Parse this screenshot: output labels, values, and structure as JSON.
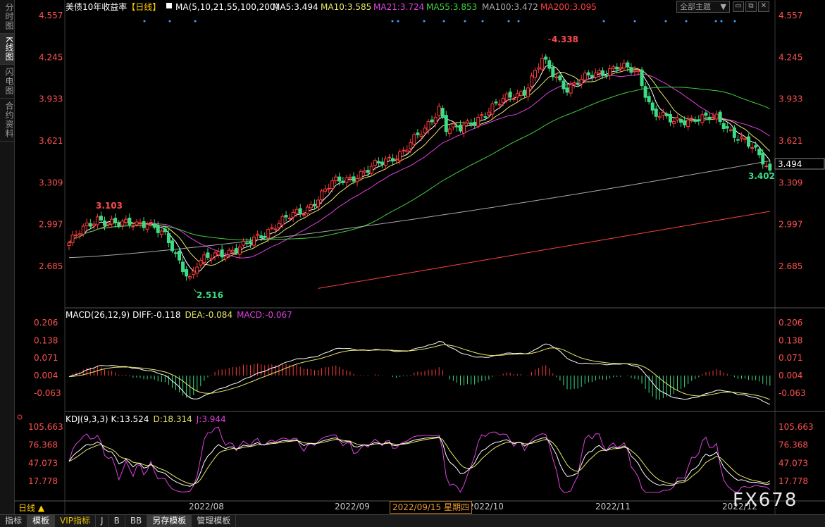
{
  "left_tabs": [
    "分时图",
    "K线图",
    "闪电图",
    "合约资料"
  ],
  "header": {
    "symbol": "美债10年收益率",
    "period": "【日线】",
    "ma_params": "MA(5,10,21,55,100,200)",
    "ma": [
      {
        "label": "MA5:3.494",
        "color": "#ffffff"
      },
      {
        "label": "MA10:3.585",
        "color": "#e8e86a"
      },
      {
        "label": "MA21:3.724",
        "color": "#e040e0"
      },
      {
        "label": "MA55:3.853",
        "color": "#40d040"
      },
      {
        "label": "MA100:3.472",
        "color": "#a8a8a8"
      },
      {
        "label": "MA200:3.095",
        "color": "#ff4040"
      }
    ]
  },
  "dropdown": {
    "label": "全部主题"
  },
  "main_axis": {
    "ticks": [
      "4.557",
      "4.245",
      "3.933",
      "3.621",
      "3.309",
      "2.997",
      "2.685"
    ],
    "last_price": "3.494"
  },
  "annotations": {
    "high": "4.338",
    "low": "2.516",
    "left_high": "3.103",
    "last": "3.402"
  },
  "macd": {
    "title": "MACD(26,12,9)",
    "diff": "DIFF:-0.118",
    "dea": "DEA:-0.084",
    "macd": "MACD:-0.067",
    "ticks": [
      "0.206",
      "0.138",
      "0.071",
      "0.004",
      "-0.063"
    ]
  },
  "kdj": {
    "title": "KDJ(9,3,3)",
    "k": "K:13.524",
    "d": "D:18.314",
    "j": "J:3.944",
    "ticks": [
      "105.663",
      "76.368",
      "47.073",
      "17.778"
    ]
  },
  "x_axis": {
    "labels": [
      "2022/08",
      "2022/09",
      "2022/10",
      "2022/11",
      "2022/12"
    ],
    "crosshair_date": "2022/09/15 星期四"
  },
  "period_button": "日线 ▲",
  "bottom_tabs": [
    "指标",
    "模板",
    "VIP指标",
    "J",
    "B",
    "BB",
    "另存模板",
    "管理模板"
  ],
  "watermark": "FX678",
  "colors": {
    "up": "#ff3b3b",
    "down": "#3ddc84",
    "diff": "#ffffff",
    "dea": "#e8e86a",
    "k": "#ffffff",
    "d": "#e8e86a",
    "j": "#e040e0"
  },
  "chart_data": {
    "type": "candlestick",
    "series_summary": {
      "start_close": 2.86,
      "max_high": 4.338,
      "min_low": 2.516,
      "last_close": 3.402
    },
    "ma_last": {
      "MA5": 3.494,
      "MA10": 3.585,
      "MA21": 3.724,
      "MA55": 3.853,
      "MA100": 3.472,
      "MA200": 3.095
    },
    "ylim": [
      2.55,
      4.6
    ],
    "macd_last": {
      "DIFF": -0.118,
      "DEA": -0.084,
      "MACD": -0.067
    },
    "kdj_last": {
      "K": 13.524,
      "D": 18.314,
      "J": 3.944
    }
  }
}
